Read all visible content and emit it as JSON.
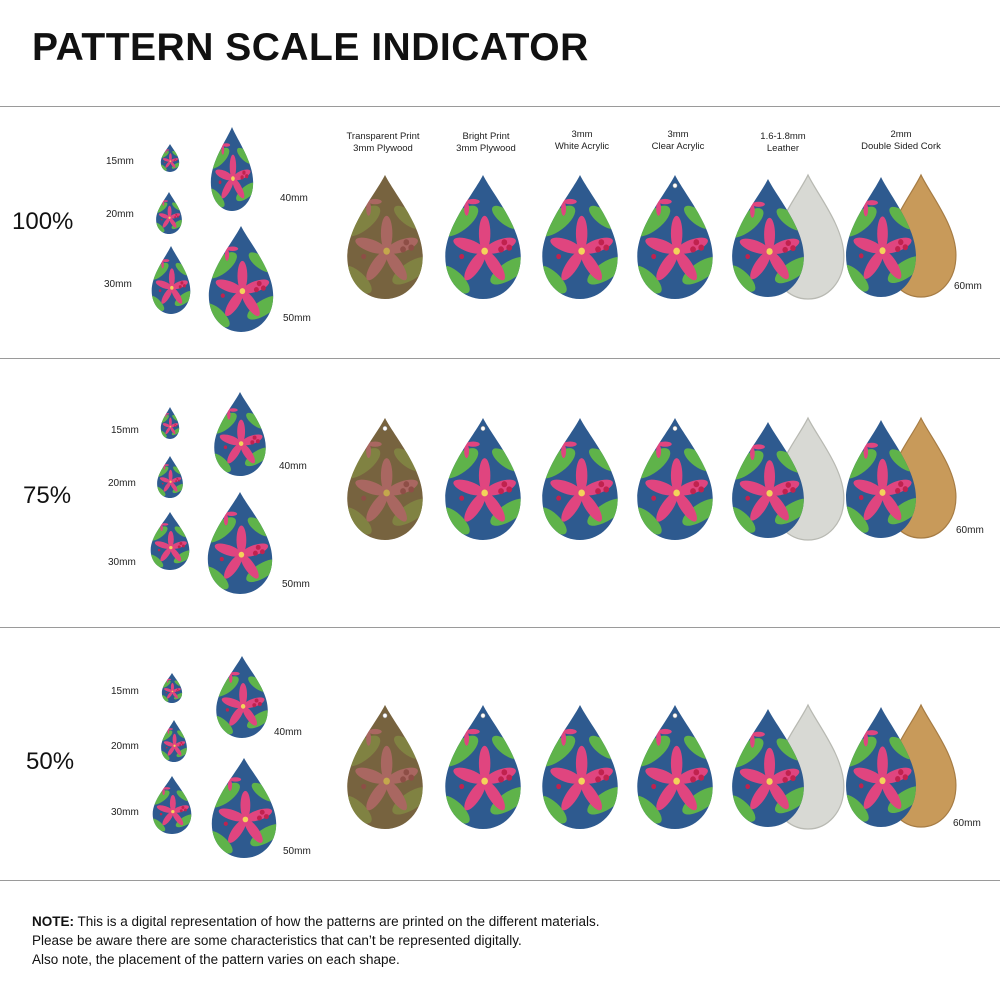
{
  "title": "PATTERN SCALE INDICATOR",
  "materials": [
    {
      "line1": "Transparent Print",
      "line2": "3mm Plywood"
    },
    {
      "line1": "Bright Print",
      "line2": "3mm Plywood"
    },
    {
      "line1": "3mm",
      "line2": "White Acrylic"
    },
    {
      "line1": "3mm",
      "line2": "Clear Acrylic"
    },
    {
      "line1": "1.6-1.8mm",
      "line2": "Leather"
    },
    {
      "line1": "2mm",
      "line2": "Double Sided Cork"
    }
  ],
  "sizes": {
    "s15": "15mm",
    "s20": "20mm",
    "s30": "30mm",
    "s40": "40mm",
    "s50": "50mm",
    "s60": "60mm"
  },
  "sections": [
    {
      "scale": "100%"
    },
    {
      "scale": "75%"
    },
    {
      "scale": "50%"
    }
  ],
  "colors": {
    "pattern_background": "#2e5a8f",
    "leaf_green": "#5fb34a",
    "poinsettia_pink": "#e0457f",
    "berry_red": "#c0224e",
    "plywood": "#8a6a4a",
    "leather": "#d8d9d4",
    "cork": "#c89a5a",
    "divider": "#9a9a9a"
  },
  "note": {
    "label": "NOTE:",
    "line1": " This is a digital representation of how the patterns are printed on the different materials.",
    "line2": "Please be aware there are some characteristics that can’t be represented digitally.",
    "line3": "Also note, the placement of the pattern varies on each shape."
  }
}
